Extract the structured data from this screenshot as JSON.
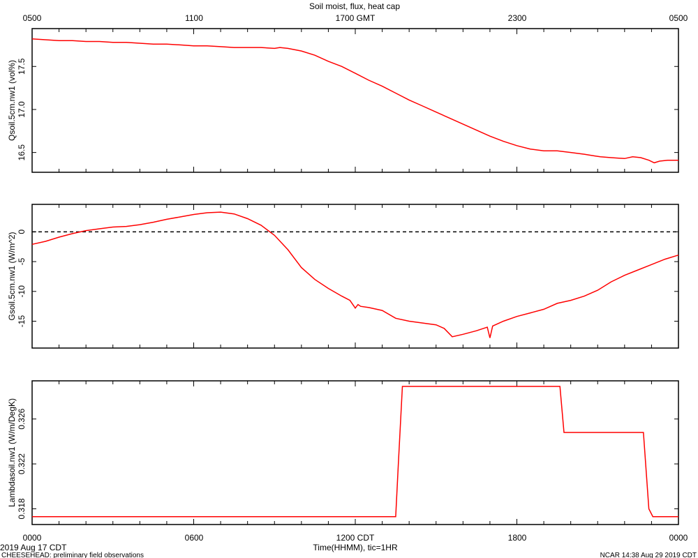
{
  "title": "Soil moist, flux, heat cap",
  "top_axis": {
    "labels": [
      "0500",
      "1100",
      "1700 GMT",
      "2300",
      "0500"
    ]
  },
  "bottom_axis": {
    "labels": [
      "0000",
      "0600",
      "1200 CDT",
      "1800",
      "0000"
    ],
    "xlabel": "Time(HHMM), tic=1HR"
  },
  "footer": {
    "date": "2019 Aug 17 CDT",
    "project": "CHEESEHEAD: preliminary field observations",
    "credit": "NCAR 14:38 Aug 29 2019 CDT"
  },
  "colors": {
    "series": "#ff0000",
    "frame": "#000000"
  },
  "chart_data": [
    {
      "type": "line",
      "ylabel": "Qsoil.5cm.nw1 (vol%)",
      "xlim": [
        0,
        24
      ],
      "ylim": [
        16.27,
        17.94
      ],
      "yticks": [
        "16.5",
        "17.0",
        "17.5"
      ],
      "ytick_values": [
        16.5,
        17.0,
        17.5
      ],
      "zero_line": false,
      "x": [
        0,
        0.5,
        1,
        1.5,
        2,
        2.5,
        3,
        3.5,
        4,
        4.5,
        5,
        5.5,
        6,
        6.5,
        7,
        7.5,
        8,
        8.5,
        9,
        9.2,
        9.5,
        10,
        10.5,
        11,
        11.5,
        12,
        12.5,
        13,
        13.5,
        14,
        14.5,
        15,
        15.5,
        16,
        16.5,
        17,
        17.5,
        18,
        18.5,
        19,
        19.5,
        20,
        20.5,
        20.9,
        21.1,
        21.5,
        22,
        22.3,
        22.6,
        22.9,
        23.1,
        23.3,
        23.6,
        24
      ],
      "values": [
        17.82,
        17.81,
        17.8,
        17.8,
        17.79,
        17.79,
        17.78,
        17.78,
        17.77,
        17.76,
        17.76,
        17.75,
        17.74,
        17.74,
        17.73,
        17.72,
        17.72,
        17.72,
        17.71,
        17.72,
        17.71,
        17.68,
        17.63,
        17.56,
        17.5,
        17.42,
        17.34,
        17.27,
        17.19,
        17.11,
        17.04,
        16.97,
        16.9,
        16.83,
        16.76,
        16.69,
        16.63,
        16.58,
        16.54,
        16.52,
        16.52,
        16.5,
        16.48,
        16.46,
        16.45,
        16.44,
        16.43,
        16.45,
        16.44,
        16.41,
        16.38,
        16.4,
        16.41,
        16.41
      ]
    },
    {
      "type": "line",
      "ylabel": "Gsoil.5cm.nw1 (W/m^2)",
      "xlim": [
        0,
        24
      ],
      "ylim": [
        -19.5,
        4.6
      ],
      "yticks": [
        "-15",
        "-10",
        "-5",
        "0"
      ],
      "ytick_values": [
        -15,
        -10,
        -5,
        0
      ],
      "zero_line": true,
      "x": [
        0,
        0.5,
        1,
        1.5,
        2,
        2.5,
        3,
        3.5,
        4,
        4.5,
        5,
        5.5,
        6,
        6.5,
        7,
        7.5,
        8,
        8.5,
        9,
        9.5,
        10,
        10.5,
        11,
        11.5,
        11.8,
        12.0,
        12.1,
        12.2,
        12.5,
        13,
        13.5,
        14,
        14.5,
        15,
        15.3,
        15.6,
        16,
        16.5,
        16.9,
        17.0,
        17.1,
        17.5,
        18,
        18.5,
        19,
        19.5,
        20,
        20.5,
        21,
        21.5,
        22,
        22.5,
        23,
        23.5,
        24
      ],
      "values": [
        -2.1,
        -1.6,
        -0.9,
        -0.3,
        0.2,
        0.5,
        0.8,
        0.9,
        1.2,
        1.6,
        2.1,
        2.5,
        2.9,
        3.2,
        3.3,
        3.0,
        2.2,
        1.1,
        -0.6,
        -3.0,
        -6.0,
        -8.0,
        -9.5,
        -10.8,
        -11.5,
        -12.8,
        -12.2,
        -12.5,
        -12.7,
        -13.2,
        -14.5,
        -15.0,
        -15.3,
        -15.6,
        -16.2,
        -17.6,
        -17.2,
        -16.6,
        -16.0,
        -17.8,
        -15.8,
        -15.0,
        -14.2,
        -13.6,
        -13.0,
        -12.0,
        -11.5,
        -10.8,
        -9.8,
        -8.4,
        -7.3,
        -6.4,
        -5.5,
        -4.6,
        -3.9
      ]
    },
    {
      "type": "line",
      "ylabel": "Lambdasoil.nw1 (W/m/DegK)",
      "xlim": [
        0,
        24
      ],
      "ylim": [
        0.3166,
        0.3294
      ],
      "yticks": [
        "0.318",
        "0.322",
        "0.326"
      ],
      "ytick_values": [
        0.318,
        0.322,
        0.326
      ],
      "zero_line": false,
      "x": [
        0,
        13.5,
        13.6,
        13.75,
        19.6,
        19.75,
        22.7,
        22.9,
        23.05,
        24
      ],
      "values": [
        0.3173,
        0.3173,
        0.322,
        0.3289,
        0.3289,
        0.3248,
        0.3248,
        0.318,
        0.3173,
        0.3173
      ]
    }
  ]
}
